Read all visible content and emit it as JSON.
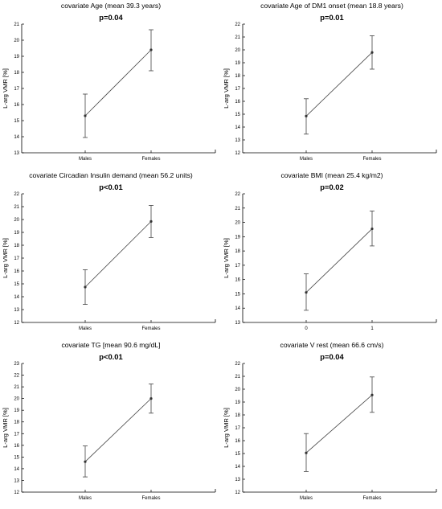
{
  "chart_data": [
    {
      "type": "line",
      "title": "covariate Age (mean 39.3 years)",
      "annotation": "p=0.04",
      "ylabel": "L-arg VMR [%]",
      "xlabel": "",
      "categories": [
        "Males",
        "Females"
      ],
      "values": [
        15.3,
        19.4
      ],
      "error_low": [
        13.95,
        18.1
      ],
      "error_high": [
        16.65,
        20.65
      ],
      "ylim": [
        13,
        21
      ],
      "yticks": [
        "13",
        "14",
        "15",
        "16",
        "17",
        "18",
        "19",
        "20",
        "21"
      ],
      "grid": false
    },
    {
      "type": "line",
      "title": "covariate Age of DM1 onset (mean 18.8 years)",
      "annotation": "p=0.01",
      "ylabel": "L-arg VMR [%]",
      "xlabel": "",
      "categories": [
        "Males",
        "Females"
      ],
      "values": [
        14.85,
        19.8
      ],
      "error_low": [
        13.45,
        18.5
      ],
      "error_high": [
        16.2,
        21.1
      ],
      "ylim": [
        12,
        22
      ],
      "yticks": [
        "12",
        "13",
        "14",
        "15",
        "16",
        "17",
        "18",
        "19",
        "20",
        "21",
        "22"
      ],
      "grid": false
    },
    {
      "type": "line",
      "title": "covariate Circadian Insulin demand (mean 56.2 units)",
      "annotation": "p<0.01",
      "ylabel": "L-arg VMR [%]",
      "xlabel": "",
      "categories": [
        "Males",
        "Females"
      ],
      "values": [
        14.75,
        19.85
      ],
      "error_low": [
        13.4,
        18.6
      ],
      "error_high": [
        16.1,
        21.1
      ],
      "ylim": [
        12,
        22
      ],
      "yticks": [
        "12",
        "13",
        "14",
        "15",
        "16",
        "17",
        "18",
        "19",
        "20",
        "21",
        "22"
      ],
      "grid": false
    },
    {
      "type": "line",
      "title": "covariate BMI (mean 25.4 kg/m2)",
      "annotation": "p=0.02",
      "ylabel": "L-arg VMR [%]",
      "xlabel": "",
      "categories": [
        "0",
        "1"
      ],
      "values": [
        15.1,
        19.55
      ],
      "error_low": [
        13.85,
        18.35
      ],
      "error_high": [
        16.4,
        20.8
      ],
      "ylim": [
        13,
        22
      ],
      "yticks": [
        "13",
        "14",
        "15",
        "16",
        "17",
        "18",
        "19",
        "20",
        "21",
        "22"
      ],
      "grid": false
    },
    {
      "type": "line",
      "title": "covariate TG [mean 90.6 mg/dL]",
      "annotation": "p<0.01",
      "ylabel": "L-arg VMR [%]",
      "xlabel": "",
      "categories": [
        "Males",
        "Females"
      ],
      "values": [
        14.6,
        20.0
      ],
      "error_low": [
        13.3,
        18.75
      ],
      "error_high": [
        15.95,
        21.25
      ],
      "ylim": [
        12,
        23
      ],
      "yticks": [
        "12",
        "13",
        "14",
        "15",
        "16",
        "17",
        "18",
        "19",
        "20",
        "21",
        "22",
        "23"
      ],
      "grid": false
    },
    {
      "type": "line",
      "title": "covariate V rest (mean 66.6 cm/s)",
      "annotation": "p=0.04",
      "ylabel": "L-arg VMR [%]",
      "xlabel": "",
      "categories": [
        "Males",
        "Females"
      ],
      "values": [
        15.05,
        19.55
      ],
      "error_low": [
        13.6,
        18.2
      ],
      "error_high": [
        16.55,
        20.95
      ],
      "ylim": [
        12,
        22
      ],
      "yticks": [
        "12",
        "13",
        "14",
        "15",
        "16",
        "17",
        "18",
        "19",
        "20",
        "21",
        "22"
      ],
      "grid": false
    }
  ]
}
